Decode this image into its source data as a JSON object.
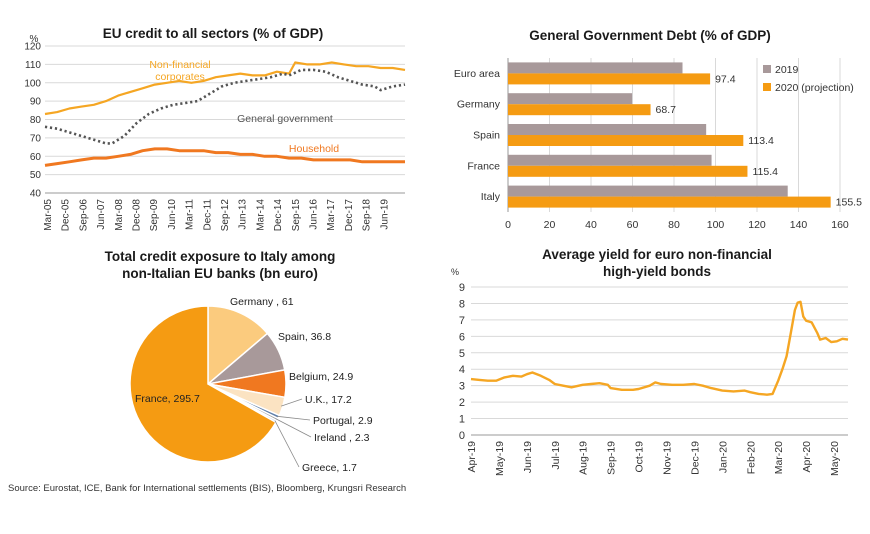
{
  "source": "Source: Eurostat, ICE, Bank for International settlements (BIS), Bloomberg, Krungsri Research",
  "chart_data": [
    {
      "id": "eu_credit",
      "type": "line",
      "title": "EU credit to all sectors (% of GDP)",
      "ylabel": "%",
      "ylim": [
        40,
        120
      ],
      "yticks": [
        40,
        50,
        60,
        70,
        80,
        90,
        100,
        110,
        120
      ],
      "grid": true,
      "xticks": [
        "Mar-05",
        "Dec-05",
        "Sep-06",
        "Jun-07",
        "Mar-08",
        "Dec-08",
        "Sep-09",
        "Jun-10",
        "Mar-11",
        "Dec-11",
        "Sep-12",
        "Jun-13",
        "Mar-14",
        "Dec-14",
        "Sep-15",
        "Jun-16",
        "Mar-17",
        "Dec-17",
        "Sep-18",
        "Jun-19"
      ],
      "x_index_range": [
        0,
        59
      ],
      "series": [
        {
          "name": "Non-financial corporates",
          "color": "#F5A623",
          "style": "solid",
          "points": [
            [
              0,
              83
            ],
            [
              2,
              84
            ],
            [
              4,
              86
            ],
            [
              6,
              87
            ],
            [
              8,
              88
            ],
            [
              10,
              90
            ],
            [
              12,
              93
            ],
            [
              14,
              95
            ],
            [
              16,
              97
            ],
            [
              18,
              99
            ],
            [
              20,
              100
            ],
            [
              22,
              101
            ],
            [
              24,
              100
            ],
            [
              26,
              101
            ],
            [
              28,
              103
            ],
            [
              30,
              104
            ],
            [
              32,
              105
            ],
            [
              34,
              104
            ],
            [
              36,
              104
            ],
            [
              38,
              106
            ],
            [
              40,
              105
            ],
            [
              41,
              111
            ],
            [
              43,
              110
            ],
            [
              45,
              110
            ],
            [
              47,
              111
            ],
            [
              49,
              110
            ],
            [
              51,
              109
            ],
            [
              53,
              109
            ],
            [
              55,
              108
            ],
            [
              57,
              108
            ],
            [
              59,
              107
            ]
          ]
        },
        {
          "name": "General government",
          "color": "#555555",
          "style": "dotted",
          "points": [
            [
              0,
              76
            ],
            [
              2,
              75
            ],
            [
              4,
              73
            ],
            [
              6,
              71
            ],
            [
              8,
              69
            ],
            [
              10,
              67
            ],
            [
              11,
              67
            ],
            [
              13,
              71
            ],
            [
              15,
              78
            ],
            [
              17,
              83
            ],
            [
              19,
              86
            ],
            [
              21,
              88
            ],
            [
              23,
              89
            ],
            [
              25,
              90
            ],
            [
              27,
              94
            ],
            [
              29,
              98
            ],
            [
              31,
              100
            ],
            [
              33,
              101
            ],
            [
              35,
              102
            ],
            [
              37,
              103
            ],
            [
              39,
              105
            ],
            [
              40,
              104
            ],
            [
              42,
              107
            ],
            [
              44,
              107
            ],
            [
              46,
              106
            ],
            [
              48,
              103
            ],
            [
              50,
              101
            ],
            [
              52,
              99
            ],
            [
              54,
              98
            ],
            [
              55,
              96
            ],
            [
              57,
              98
            ],
            [
              59,
              99
            ]
          ]
        },
        {
          "name": "Household",
          "color": "#F07820",
          "style": "solid",
          "points": [
            [
              0,
              55
            ],
            [
              2,
              56
            ],
            [
              4,
              57
            ],
            [
              6,
              58
            ],
            [
              8,
              59
            ],
            [
              10,
              59
            ],
            [
              12,
              60
            ],
            [
              14,
              61
            ],
            [
              16,
              63
            ],
            [
              18,
              64
            ],
            [
              20,
              64
            ],
            [
              22,
              63
            ],
            [
              24,
              63
            ],
            [
              26,
              63
            ],
            [
              28,
              62
            ],
            [
              30,
              62
            ],
            [
              32,
              61
            ],
            [
              34,
              61
            ],
            [
              36,
              60
            ],
            [
              38,
              60
            ],
            [
              40,
              59
            ],
            [
              42,
              59
            ],
            [
              44,
              58
            ],
            [
              46,
              58
            ],
            [
              48,
              58
            ],
            [
              50,
              58
            ],
            [
              52,
              57
            ],
            [
              54,
              57
            ],
            [
              56,
              57
            ],
            [
              58,
              57
            ],
            [
              59,
              57
            ]
          ]
        }
      ]
    },
    {
      "id": "gov_debt",
      "type": "bar",
      "orientation": "horizontal",
      "title": "General Government Debt (% of GDP)",
      "categories": [
        "Euro area",
        "Germany",
        "Spain",
        "France",
        "Italy"
      ],
      "xlim": [
        0,
        160
      ],
      "xticks": [
        0,
        20,
        40,
        60,
        80,
        100,
        120,
        140,
        160
      ],
      "grid": true,
      "legend_position": "top-right",
      "series": [
        {
          "name": "2019",
          "color": "#A8999A",
          "values": [
            84.1,
            59.8,
            95.5,
            98.1,
            134.8
          ]
        },
        {
          "name": "2020 (projection)",
          "color": "#F59B12",
          "values": [
            97.4,
            68.7,
            113.4,
            115.4,
            155.5
          ]
        }
      ],
      "data_labels": [
        "97.4",
        "68.7",
        "113.4",
        "115.4",
        "155.5"
      ]
    },
    {
      "id": "italy_exposure",
      "type": "pie",
      "title": "Total credit exposure to Italy among non-Italian EU banks (bn euro)",
      "title_lines": [
        "Total credit exposure to Italy among",
        "non-Italian EU banks (bn euro)"
      ],
      "slices": [
        {
          "label": "Germany , 61",
          "value": 61,
          "color": "#FBCB7E"
        },
        {
          "label": "Spain, 36.8",
          "value": 36.8,
          "color": "#A8999A"
        },
        {
          "label": "Belgium, 24.9",
          "value": 24.9,
          "color": "#F07820"
        },
        {
          "label": "U.K., 17.2",
          "value": 17.2,
          "color": "#FBE3C2"
        },
        {
          "label": "Portugal, 2.9",
          "value": 2.9,
          "color": "#5E7EA8"
        },
        {
          "label": "Ireland , 2.3",
          "value": 2.3,
          "color": "#9A9A9A"
        },
        {
          "label": "Greece, 1.7",
          "value": 1.7,
          "color": "#6A8CC0"
        },
        {
          "label": "France, 295.7",
          "value": 295.7,
          "color": "#F59B12"
        }
      ]
    },
    {
      "id": "hy_yield",
      "type": "line",
      "title": "Average yield for euro non-financial high-yield bonds",
      "title_lines": [
        "Average yield for euro non-financial",
        "high-yield bonds"
      ],
      "ylabel": "%",
      "ylim": [
        0,
        9
      ],
      "yticks": [
        0,
        1,
        2,
        3,
        4,
        5,
        6,
        7,
        8,
        9
      ],
      "grid": true,
      "xticks": [
        "Apr-19",
        "May-19",
        "Jun-19",
        "Jul-19",
        "Aug-19",
        "Sep-19",
        "Oct-19",
        "Nov-19",
        "Dec-19",
        "Jan-20",
        "Feb-20",
        "Mar-20",
        "Apr-20",
        "May-20"
      ],
      "x_month_range": [
        0,
        13.5
      ],
      "series": [
        {
          "name": "",
          "color": "#F5A623",
          "points": [
            [
              0,
              3.4
            ],
            [
              0.3,
              3.35
            ],
            [
              0.6,
              3.3
            ],
            [
              0.9,
              3.3
            ],
            [
              1.2,
              3.5
            ],
            [
              1.5,
              3.6
            ],
            [
              1.8,
              3.55
            ],
            [
              2.0,
              3.7
            ],
            [
              2.2,
              3.8
            ],
            [
              2.5,
              3.6
            ],
            [
              2.8,
              3.35
            ],
            [
              3.0,
              3.1
            ],
            [
              3.3,
              3.0
            ],
            [
              3.6,
              2.9
            ],
            [
              4.0,
              3.05
            ],
            [
              4.3,
              3.1
            ],
            [
              4.6,
              3.15
            ],
            [
              4.9,
              3.05
            ],
            [
              5.0,
              2.85
            ],
            [
              5.4,
              2.75
            ],
            [
              5.8,
              2.75
            ],
            [
              6.0,
              2.8
            ],
            [
              6.4,
              3.0
            ],
            [
              6.6,
              3.2
            ],
            [
              6.8,
              3.1
            ],
            [
              7.2,
              3.05
            ],
            [
              7.6,
              3.05
            ],
            [
              8.0,
              3.1
            ],
            [
              8.3,
              3.0
            ],
            [
              8.6,
              2.85
            ],
            [
              9.0,
              2.7
            ],
            [
              9.4,
              2.65
            ],
            [
              9.8,
              2.7
            ],
            [
              10.0,
              2.6
            ],
            [
              10.3,
              2.5
            ],
            [
              10.6,
              2.45
            ],
            [
              10.8,
              2.5
            ],
            [
              11.0,
              3.3
            ],
            [
              11.15,
              4.0
            ],
            [
              11.3,
              4.8
            ],
            [
              11.45,
              6.2
            ],
            [
              11.6,
              7.6
            ],
            [
              11.7,
              8.05
            ],
            [
              11.8,
              8.1
            ],
            [
              11.9,
              7.2
            ],
            [
              12.0,
              6.95
            ],
            [
              12.2,
              6.85
            ],
            [
              12.4,
              6.2
            ],
            [
              12.5,
              5.8
            ],
            [
              12.7,
              5.9
            ],
            [
              12.9,
              5.65
            ],
            [
              13.1,
              5.7
            ],
            [
              13.3,
              5.85
            ],
            [
              13.5,
              5.8
            ]
          ]
        }
      ]
    }
  ]
}
